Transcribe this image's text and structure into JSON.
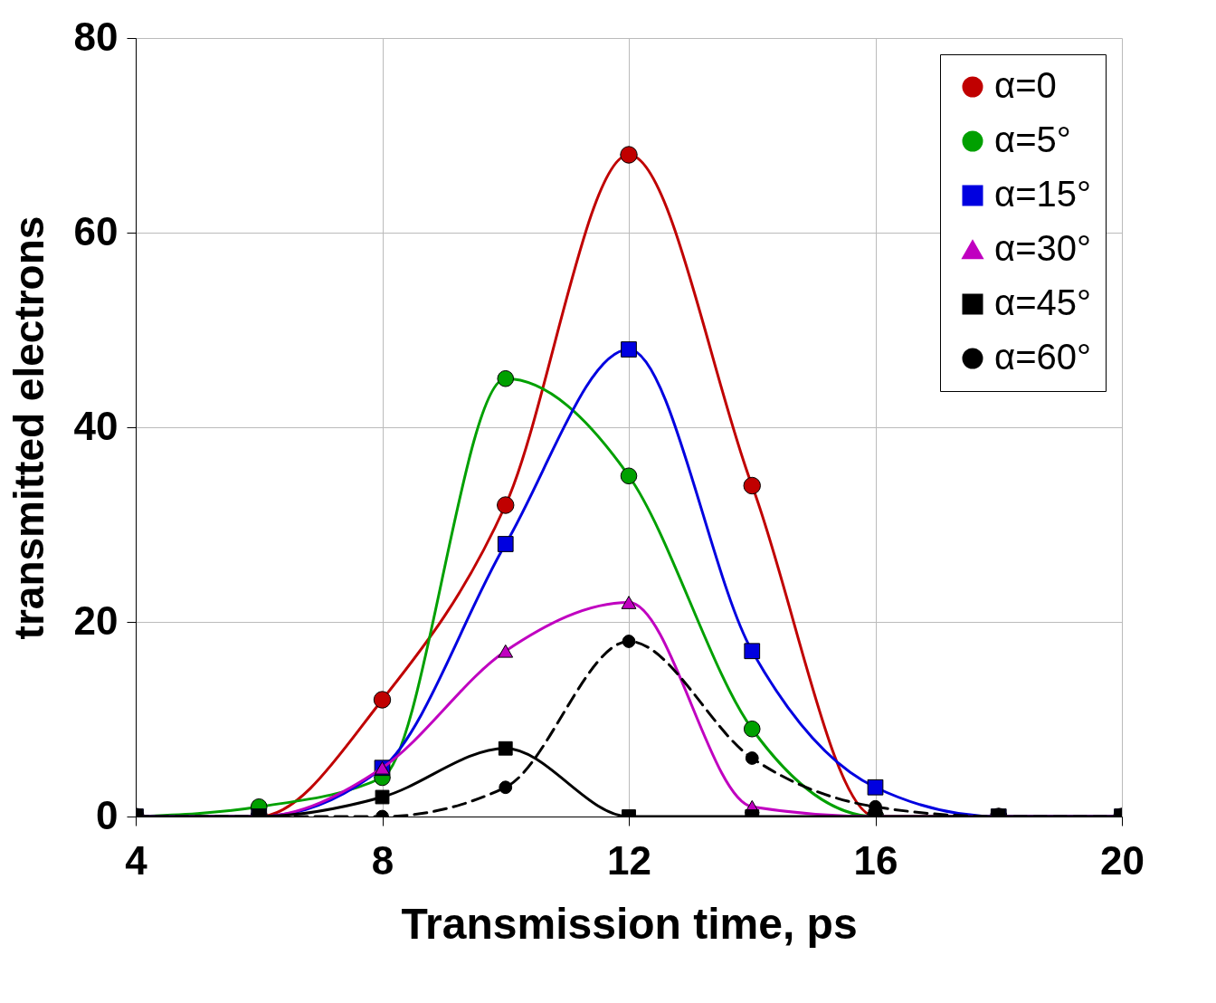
{
  "chart_data": {
    "type": "line",
    "xlabel": "Transmission time, ps",
    "ylabel": "transmitted electrons",
    "x": [
      4,
      6,
      8,
      10,
      12,
      14,
      16,
      18,
      20
    ],
    "xlim": [
      4,
      20
    ],
    "xticks": [
      4,
      8,
      12,
      16,
      20
    ],
    "ylim": [
      0,
      80
    ],
    "yticks": [
      0,
      20,
      40,
      60,
      80
    ],
    "grid": true,
    "legend": "top right",
    "series": [
      {
        "name": "α=0",
        "color": "#c00000",
        "marker": "circle",
        "line_style": "solid",
        "values": [
          0,
          0,
          12,
          32,
          68,
          34,
          0,
          0,
          0
        ]
      },
      {
        "name": "α=5°",
        "color": "#00a000",
        "marker": "circle",
        "line_style": "solid",
        "values": [
          0,
          1,
          4,
          45,
          35,
          9,
          0,
          0,
          0
        ]
      },
      {
        "name": "α=15°",
        "color": "#0000e0",
        "marker": "square",
        "line_style": "solid",
        "values": [
          0,
          0,
          5,
          28,
          48,
          17,
          3,
          0,
          0
        ]
      },
      {
        "name": "α=30°",
        "color": "#c000c0",
        "marker": "triangle",
        "line_style": "solid",
        "values": [
          0,
          0,
          5,
          17,
          22,
          1,
          0,
          0,
          0
        ]
      },
      {
        "name": "α=45°",
        "color": "#000000",
        "marker": "square",
        "line_style": "solid",
        "values": [
          0,
          0,
          2,
          7,
          0,
          0,
          0,
          0,
          0
        ]
      },
      {
        "name": "α=60°",
        "color": "#000000",
        "marker": "circle",
        "line_style": "dashed",
        "values": [
          0,
          0,
          0,
          3,
          18,
          6,
          1,
          0,
          0
        ]
      }
    ]
  }
}
